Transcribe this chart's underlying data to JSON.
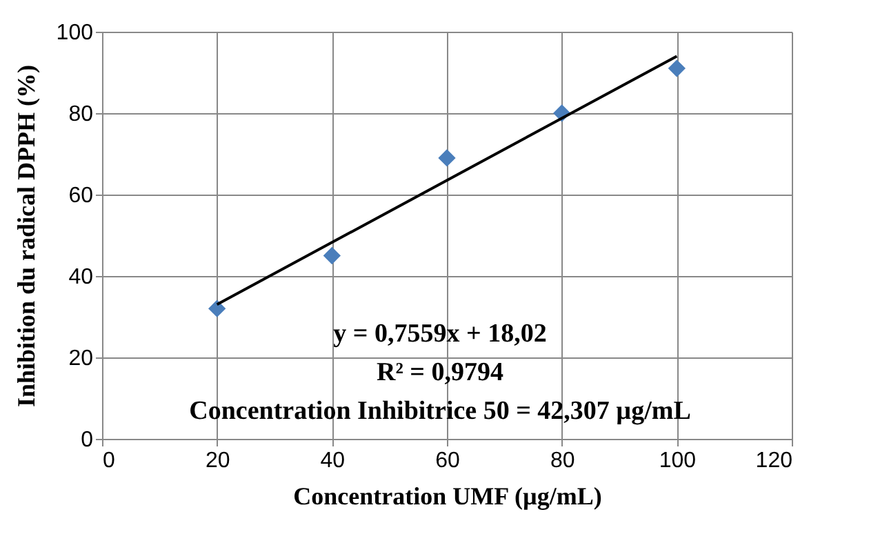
{
  "chart_data": {
    "type": "scatter",
    "xlabel": "Concentration UMF (µg/mL)",
    "ylabel": "Inhibition du radical DPPH (%)",
    "xlim": [
      0,
      120
    ],
    "xticks": [
      0,
      20,
      40,
      60,
      80,
      100,
      120
    ],
    "ylim": [
      0,
      100
    ],
    "yticks": [
      0,
      20,
      40,
      60,
      80,
      100
    ],
    "grid": true,
    "series": [
      {
        "color": "#4a7ebb",
        "marker": "diamond",
        "x": [
          20,
          40,
          60,
          80,
          100
        ],
        "values": [
          32,
          45,
          69,
          80,
          91
        ]
      },
      {
        "type": "line",
        "marker": "none",
        "color": "#000000",
        "x": [
          20,
          100
        ],
        "values": [
          33,
          94
        ]
      }
    ],
    "annotations": [
      "y = 0,7559x + 18,02",
      "R² = 0,9794",
      "Concentration Inhibitrice 50 = 42,307 µg/mL"
    ]
  }
}
